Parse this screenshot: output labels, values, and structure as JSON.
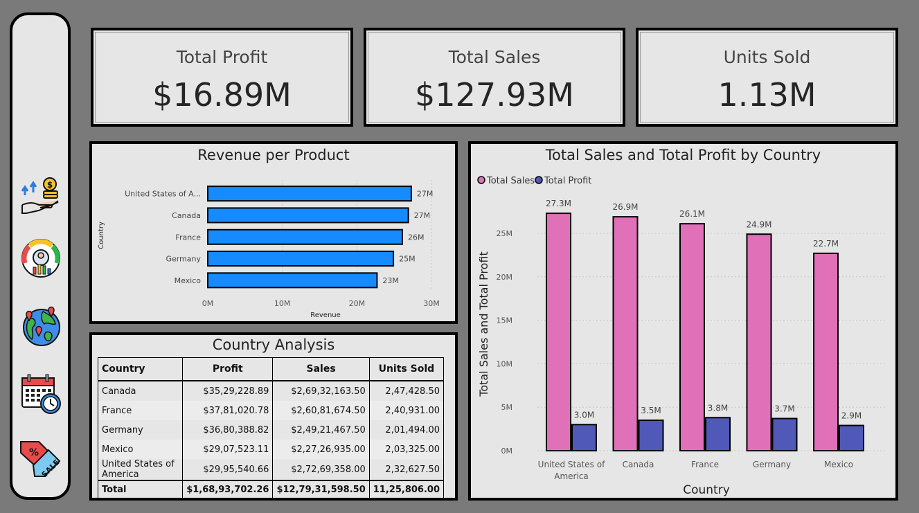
{
  "kpis": [
    {
      "title": "Total Profit",
      "value": "$16.89M"
    },
    {
      "title": "Total Sales",
      "value": "$127.93M"
    },
    {
      "title": "Units Sold",
      "value": "1.13M"
    }
  ],
  "sidebar": {
    "icons": [
      "profit-growth-icon",
      "dashboard-gauge-icon",
      "globe-map-icon",
      "calendar-clock-icon",
      "sale-tag-icon"
    ]
  },
  "revenue_chart": {
    "title": "Revenue per Product",
    "xlabel": "Revenue",
    "ylabel": "Country",
    "categories": [
      "United States of A...",
      "Canada",
      "France",
      "Germany",
      "Mexico"
    ],
    "values": [
      27.3,
      26.9,
      26.1,
      24.9,
      22.7
    ],
    "value_labels": [
      "27M",
      "27M",
      "26M",
      "25M",
      "23M"
    ],
    "ticks": [
      "0M",
      "10M",
      "20M",
      "30M"
    ],
    "tick_values": [
      0,
      10,
      20,
      30
    ],
    "xlim": [
      0,
      30
    ],
    "color": "#168bff"
  },
  "country_table": {
    "title": "Country Analysis",
    "columns": [
      "Country",
      "Profit",
      "Sales",
      "Units Sold"
    ],
    "rows": [
      [
        "Canada",
        "$35,29,228.89",
        "$2,69,32,163.50",
        "2,47,428.50"
      ],
      [
        "France",
        "$37,81,020.78",
        "$2,60,81,674.50",
        "2,40,931.00"
      ],
      [
        "Germany",
        "$36,80,388.82",
        "$2,49,21,467.50",
        "2,01,494.00"
      ],
      [
        "Mexico",
        "$29,07,523.11",
        "$2,27,26,935.00",
        "2,03,325.00"
      ],
      [
        "United States of America",
        "$29,95,540.66",
        "$2,72,69,358.00",
        "2,32,627.50"
      ]
    ],
    "total": [
      "Total",
      "$1,68,93,702.26",
      "$12,79,31,598.50",
      "11,25,806.00"
    ]
  },
  "chart_data": [
    {
      "type": "bar",
      "orientation": "horizontal",
      "title": "Revenue per Product",
      "categories": [
        "United States of America",
        "Canada",
        "France",
        "Germany",
        "Mexico"
      ],
      "values": [
        27.3,
        26.9,
        26.1,
        24.9,
        22.7
      ],
      "xlabel": "Revenue",
      "ylabel": "Country",
      "xlim": [
        0,
        30
      ],
      "unit": "M"
    },
    {
      "type": "bar",
      "title": "Total Sales and Total Profit by Country",
      "categories": [
        "United States of America",
        "Canada",
        "France",
        "Germany",
        "Mexico"
      ],
      "category_labels": [
        [
          "United States of",
          "America"
        ],
        [
          "Canada"
        ],
        [
          "France"
        ],
        [
          "Germany"
        ],
        [
          "Mexico"
        ]
      ],
      "series": [
        {
          "name": "Total Sales",
          "color": "#e070b8",
          "values": [
            27.3,
            26.9,
            26.1,
            24.9,
            22.7
          ],
          "labels": [
            "27.3M",
            "26.9M",
            "26.1M",
            "24.9M",
            "22.7M"
          ]
        },
        {
          "name": "Total Profit",
          "color": "#5058b8",
          "values": [
            3.0,
            3.5,
            3.8,
            3.7,
            2.9
          ],
          "labels": [
            "3.0M",
            "3.5M",
            "3.8M",
            "3.7M",
            "2.9M"
          ]
        }
      ],
      "xlabel": "Country",
      "ylabel": "Total Sales and Total Profit",
      "yticks": [
        "0M",
        "5M",
        "10M",
        "15M",
        "20M",
        "25M"
      ],
      "ytick_values": [
        0,
        5,
        10,
        15,
        20,
        25
      ],
      "ylim": [
        0,
        30
      ]
    }
  ]
}
